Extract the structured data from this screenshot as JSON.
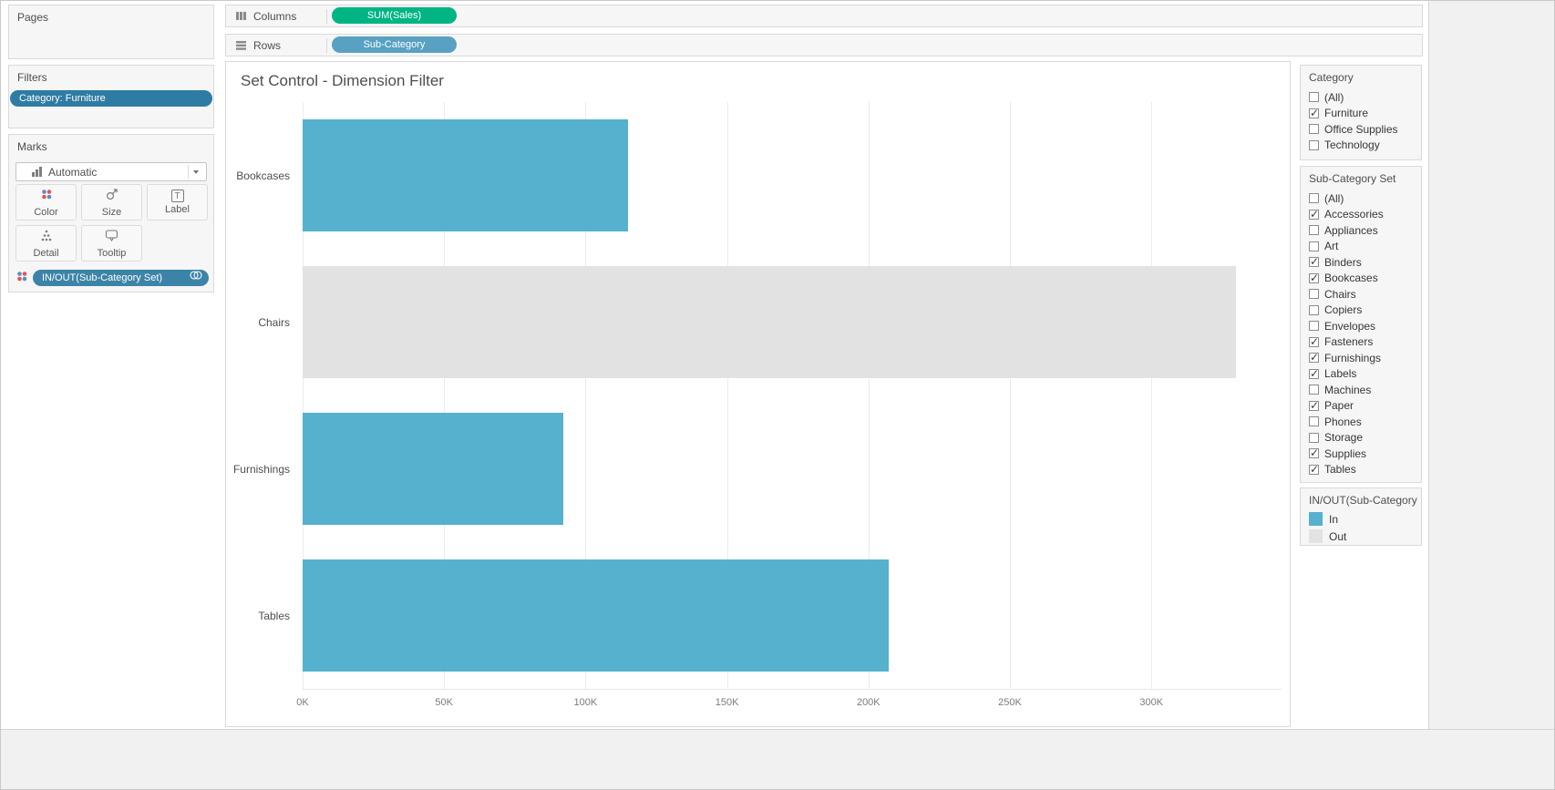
{
  "colors": {
    "measure_pill": "#00b484",
    "dimension_pill": "#58a1c2",
    "filter_pill": "#2e7ca3",
    "inout_pill": "#3c84a7",
    "bar_in": "#55b1ce",
    "bar_out": "#e2e2e2"
  },
  "left_panel": {
    "pages": {
      "title": "Pages"
    },
    "filters": {
      "title": "Filters",
      "pill": "Category: Furniture"
    },
    "marks": {
      "title": "Marks",
      "mark_type": "Automatic",
      "buttons": [
        {
          "label": "Color"
        },
        {
          "label": "Size"
        },
        {
          "label": "Label"
        },
        {
          "label": "Detail"
        },
        {
          "label": "Tooltip"
        }
      ],
      "pill": "IN/OUT(Sub-Category Set)"
    }
  },
  "shelves": {
    "columns": {
      "label": "Columns",
      "pill": "SUM(Sales)"
    },
    "rows": {
      "label": "Rows",
      "pill": "Sub-Category"
    }
  },
  "chart_data": {
    "type": "bar",
    "orientation": "horizontal",
    "title": "Set Control - Dimension Filter",
    "rows": [
      {
        "category": "Bookcases",
        "value_k": 115,
        "set": "In"
      },
      {
        "category": "Chairs",
        "value_k": 330,
        "set": "Out"
      },
      {
        "category": "Furnishings",
        "value_k": 92,
        "set": "In"
      },
      {
        "category": "Tables",
        "value_k": 207,
        "set": "In"
      }
    ],
    "x_ticks": [
      {
        "label": "0K",
        "value": 0
      },
      {
        "label": "50K",
        "value": 50
      },
      {
        "label": "100K",
        "value": 100
      },
      {
        "label": "150K",
        "value": 150
      },
      {
        "label": "200K",
        "value": 200
      },
      {
        "label": "250K",
        "value": 250
      },
      {
        "label": "300K",
        "value": 300
      }
    ],
    "x_max_k": 346,
    "grid": true,
    "legend_position": "right"
  },
  "right_panel": {
    "category": {
      "title": "Category",
      "items": [
        {
          "label": "(All)",
          "checked": false
        },
        {
          "label": "Furniture",
          "checked": true
        },
        {
          "label": "Office Supplies",
          "checked": false
        },
        {
          "label": "Technology",
          "checked": false
        }
      ]
    },
    "subcategory_set": {
      "title": "Sub-Category Set",
      "items": [
        {
          "label": "(All)",
          "checked": false
        },
        {
          "label": "Accessories",
          "checked": true
        },
        {
          "label": "Appliances",
          "checked": false
        },
        {
          "label": "Art",
          "checked": false
        },
        {
          "label": "Binders",
          "checked": true
        },
        {
          "label": "Bookcases",
          "checked": true
        },
        {
          "label": "Chairs",
          "checked": false
        },
        {
          "label": "Copiers",
          "checked": false
        },
        {
          "label": "Envelopes",
          "checked": false
        },
        {
          "label": "Fasteners",
          "checked": true
        },
        {
          "label": "Furnishings",
          "checked": true
        },
        {
          "label": "Labels",
          "checked": true
        },
        {
          "label": "Machines",
          "checked": false
        },
        {
          "label": "Paper",
          "checked": true
        },
        {
          "label": "Phones",
          "checked": false
        },
        {
          "label": "Storage",
          "checked": false
        },
        {
          "label": "Supplies",
          "checked": true
        },
        {
          "label": "Tables",
          "checked": true
        }
      ]
    },
    "inout": {
      "title": "IN/OUT(Sub-Category ...",
      "items": [
        {
          "label": "In",
          "color": "#55b1ce"
        },
        {
          "label": "Out",
          "color": "#e2e2e2"
        }
      ]
    }
  }
}
